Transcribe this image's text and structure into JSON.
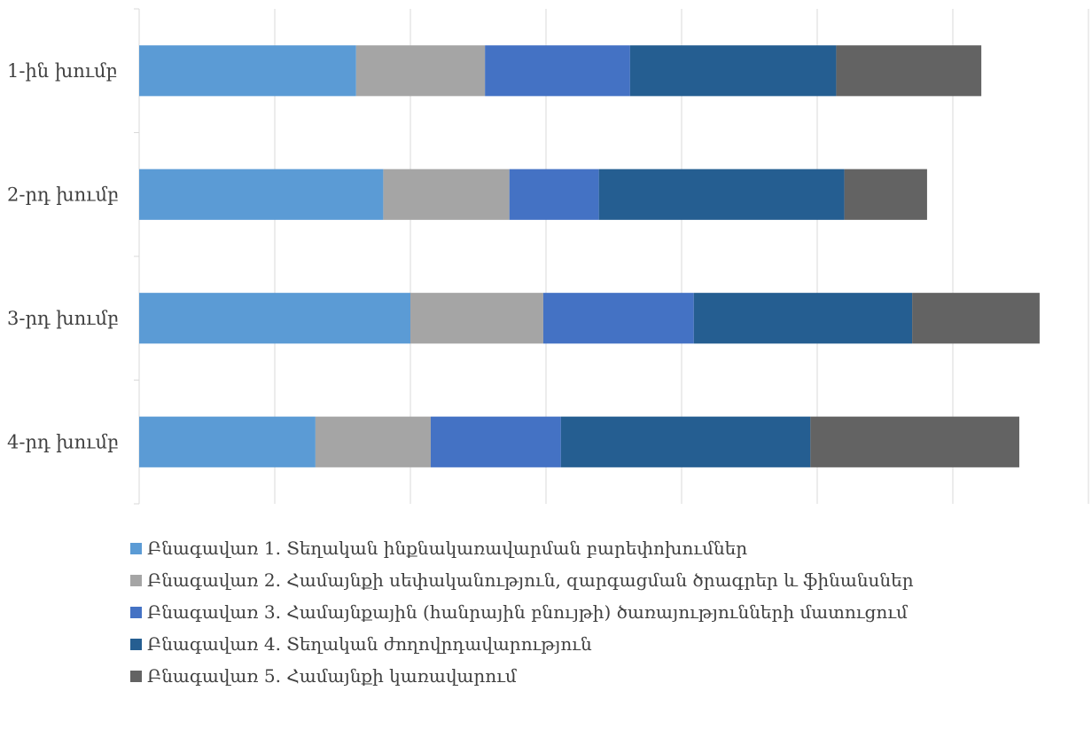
{
  "chart_data": {
    "type": "bar",
    "orientation": "horizontal",
    "stacked": true,
    "categories": [
      "1-ին խումբ",
      "2-րդ խումբ",
      "3-րդ խումբ",
      "4-րդ խումբ"
    ],
    "series": [
      {
        "name": "Բնագավառ 1. Տեղական ինքնակառավարման բարեփոխումներ",
        "color": "#5b9bd5",
        "values": [
          1.6,
          1.8,
          2.0,
          1.3
        ]
      },
      {
        "name": "Բնագավառ 2. Համայնքի սեփականություն, զարգացման ծրագրեր և ֆինանսներ",
        "color": "#a5a5a5",
        "values": [
          0.95,
          0.93,
          0.98,
          0.85
        ]
      },
      {
        "name": "Բնագավառ 3. Համայնքային (հանրային բնույթի) ծառայությունների մատուցում",
        "color": "#4472c4",
        "values": [
          1.07,
          0.66,
          1.11,
          0.96
        ]
      },
      {
        "name": "Բնագավառ 4. Տեղական ժողովրդավարություն",
        "color": "#255e91",
        "values": [
          1.52,
          1.81,
          1.61,
          1.84
        ]
      },
      {
        "name": "Բնագավառ 5. Համայնքի կառավարում",
        "color": "#636363",
        "values": [
          1.07,
          0.61,
          0.94,
          1.54
        ]
      }
    ],
    "xlim": [
      0,
      7
    ],
    "grid": true,
    "legend_position": "bottom"
  }
}
